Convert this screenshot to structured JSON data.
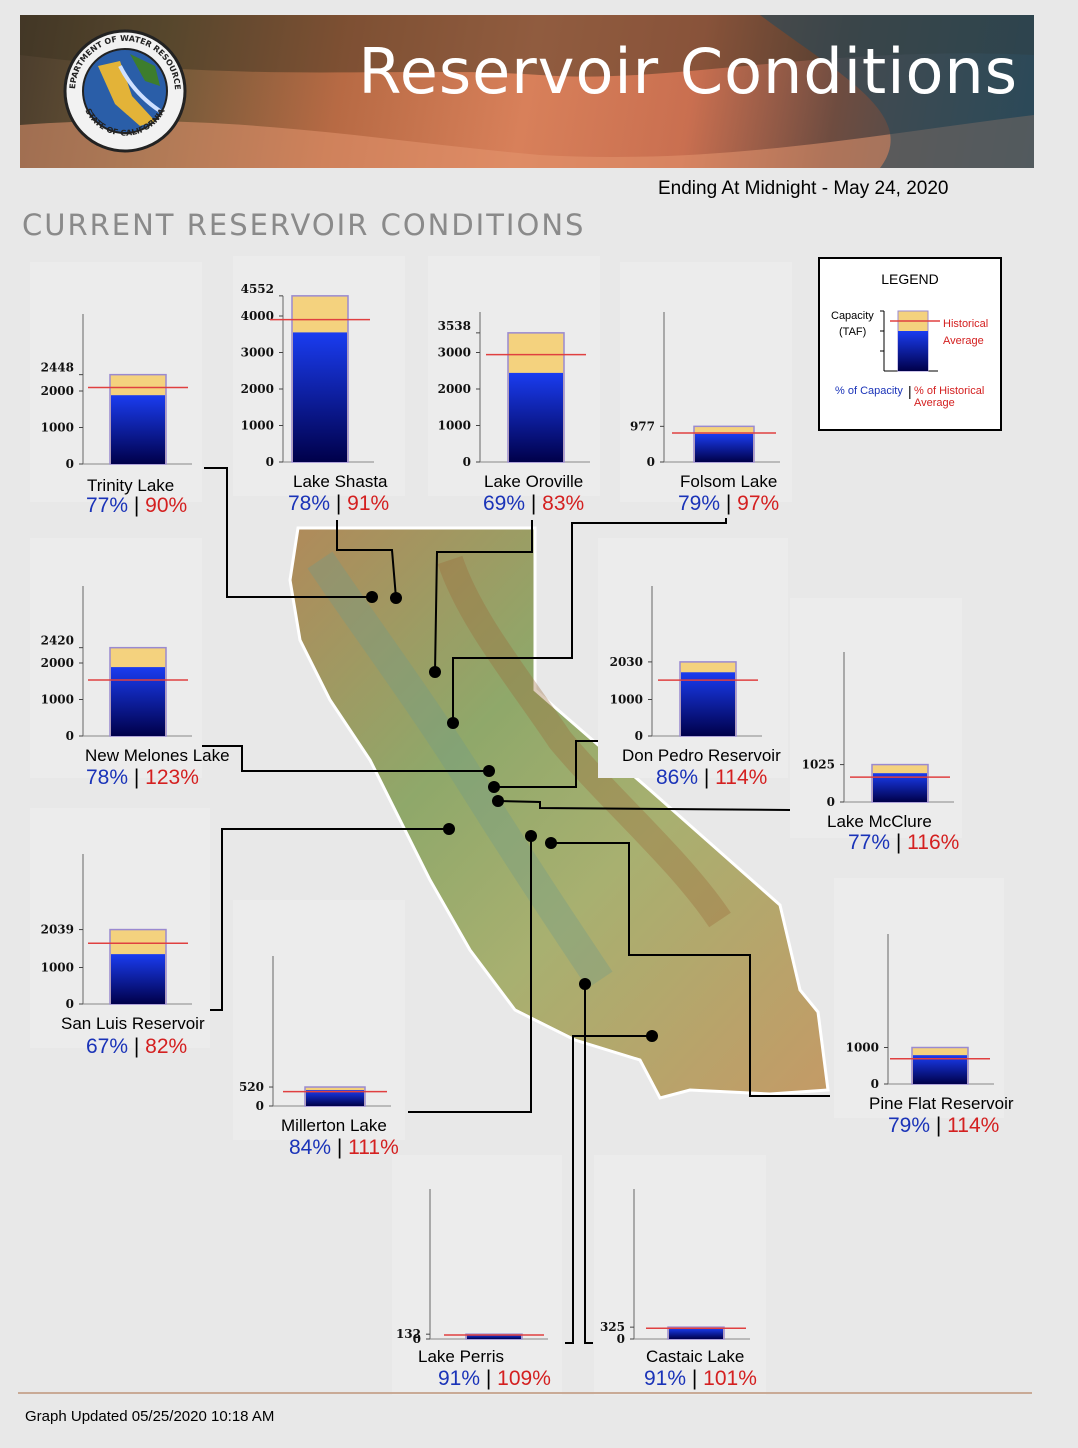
{
  "header": {
    "title": "Reservoir Conditions",
    "seal_text_top": "DEPARTMENT OF WATER RESOURCES",
    "seal_text_bottom": "STATE OF CALIFORNIA",
    "date_line": "Ending At Midnight - May 24, 2020",
    "section_title": "CURRENT RESERVOIR CONDITIONS"
  },
  "legend": {
    "title": "LEGEND",
    "capacity_label": "Capacity",
    "capacity_unit": "(TAF)",
    "historical_line1": "Historical",
    "historical_line2": "Average",
    "pct_capacity": "% of Capacity",
    "pct_historical_line1": "% of Historical",
    "pct_historical_line2": "Average"
  },
  "colors": {
    "capacity_fill": "#f4d27e",
    "storage_top": "#1a3cf0",
    "storage_bottom": "#00004a",
    "historical_line": "#e04040",
    "capacity_text": "#1a33b8",
    "historical_text": "#d42020",
    "bar_outline": "#9a8ad0"
  },
  "chart_data": {
    "type": "bar",
    "unit": "TAF",
    "reservoirs": [
      {
        "name": "Trinity Lake",
        "capacity": 2448,
        "pct_capacity": 77,
        "pct_hist": 90,
        "ticks": [
          "0",
          "1000",
          "2000",
          "2448"
        ],
        "tick_values": [
          0,
          1000,
          2000,
          2448
        ]
      },
      {
        "name": "Lake Shasta",
        "capacity": 4552,
        "pct_capacity": 78,
        "pct_hist": 91,
        "ticks": [
          "0",
          "1000",
          "2000",
          "3000",
          "4000",
          "4552"
        ],
        "tick_values": [
          0,
          1000,
          2000,
          3000,
          4000,
          4552
        ]
      },
      {
        "name": "Lake Oroville",
        "capacity": 3538,
        "pct_capacity": 69,
        "pct_hist": 83,
        "ticks": [
          "0",
          "1000",
          "2000",
          "3000",
          "3538"
        ],
        "tick_values": [
          0,
          1000,
          2000,
          3000,
          3538
        ]
      },
      {
        "name": "Folsom Lake",
        "capacity": 977,
        "pct_capacity": 79,
        "pct_hist": 97,
        "ticks": [
          "0",
          "977"
        ],
        "tick_values": [
          0,
          977
        ]
      },
      {
        "name": "New Melones Lake",
        "capacity": 2420,
        "pct_capacity": 78,
        "pct_hist": 123,
        "ticks": [
          "0",
          "1000",
          "2000",
          "2420"
        ],
        "tick_values": [
          0,
          1000,
          2000,
          2420
        ]
      },
      {
        "name": "Don Pedro Reservoir",
        "capacity": 2030,
        "pct_capacity": 86,
        "pct_hist": 114,
        "ticks": [
          "0",
          "1000",
          "2030"
        ],
        "tick_values": [
          0,
          1000,
          2030
        ]
      },
      {
        "name": "Lake McClure",
        "capacity": 1025,
        "pct_capacity": 77,
        "pct_hist": 116,
        "ticks": [
          "0",
          "1025"
        ],
        "tick_values": [
          0,
          1025
        ]
      },
      {
        "name": "San Luis Reservoir",
        "capacity": 2039,
        "pct_capacity": 67,
        "pct_hist": 82,
        "ticks": [
          "0",
          "1000",
          "2039"
        ],
        "tick_values": [
          0,
          1000,
          2039
        ]
      },
      {
        "name": "Millerton Lake",
        "capacity": 520,
        "pct_capacity": 84,
        "pct_hist": 111,
        "ticks": [
          "0",
          "520"
        ],
        "tick_values": [
          0,
          520
        ]
      },
      {
        "name": "Pine Flat Reservoir",
        "capacity": 1000,
        "pct_capacity": 79,
        "pct_hist": 114,
        "ticks": [
          "0",
          "1000"
        ],
        "tick_values": [
          0,
          1000
        ]
      },
      {
        "name": "Lake Perris",
        "capacity": 132,
        "pct_capacity": 91,
        "pct_hist": 109,
        "ticks": [
          "0",
          "132"
        ],
        "tick_values": [
          0,
          132
        ]
      },
      {
        "name": "Castaic Lake",
        "capacity": 325,
        "pct_capacity": 91,
        "pct_hist": 101,
        "ticks": [
          "0",
          "325"
        ],
        "tick_values": [
          0,
          325
        ]
      }
    ]
  },
  "footer": {
    "updated": "Graph Updated 05/25/2020 10:18 AM"
  }
}
